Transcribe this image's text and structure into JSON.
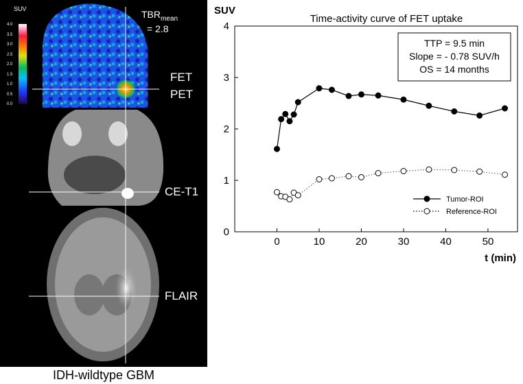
{
  "panel": {
    "colorbar_title": "SUV",
    "colorbar_ticks": [
      "4.0",
      "3.5",
      "3.0",
      "2.5",
      "2.0",
      "1.5",
      "1.0",
      "0.5",
      "0.0"
    ],
    "tbr_label": "TBR",
    "tbr_sub": "mean",
    "tbr_value": "= 2.8",
    "label_fet": "FET",
    "label_pet": "PET",
    "label_cet1": "CE-T1",
    "label_flair": "FLAIR",
    "caption": "IDH-wildtype GBM"
  },
  "colors": {
    "tumor": "#000000",
    "reference": "#666666",
    "background": "#000000"
  },
  "chart_data": {
    "type": "line",
    "title": "Time-activity curve of FET uptake",
    "ylabel": "SUV",
    "xlabel": "t (min)",
    "xlim": [
      -10,
      57
    ],
    "ylim": [
      0,
      4
    ],
    "xticks": [
      0,
      10,
      20,
      30,
      40,
      50
    ],
    "yticks": [
      0,
      1,
      2,
      3,
      4
    ],
    "annotation": [
      "TTP = 9.5 min",
      "Slope = - 0.78 SUV/h",
      "OS = 14 months"
    ],
    "legend_position": "bottom-right",
    "series": [
      {
        "name": "Tumor-ROI",
        "marker": "filled",
        "line": "solid",
        "x": [
          0,
          1,
          2,
          3,
          4,
          5,
          10,
          13,
          17,
          20,
          24,
          30,
          36,
          42,
          48,
          54
        ],
        "y": [
          1.61,
          2.19,
          2.29,
          2.15,
          2.28,
          2.52,
          2.79,
          2.76,
          2.64,
          2.67,
          2.65,
          2.57,
          2.45,
          2.34,
          2.26,
          2.4
        ]
      },
      {
        "name": "Reference-ROI",
        "marker": "open",
        "line": "dotted",
        "x": [
          0,
          1,
          2,
          3,
          4,
          5,
          10,
          13,
          17,
          20,
          24,
          30,
          36,
          42,
          48,
          54
        ],
        "y": [
          0.77,
          0.69,
          0.68,
          0.63,
          0.76,
          0.71,
          1.02,
          1.04,
          1.08,
          1.06,
          1.14,
          1.18,
          1.21,
          1.2,
          1.17,
          1.11
        ]
      }
    ]
  }
}
